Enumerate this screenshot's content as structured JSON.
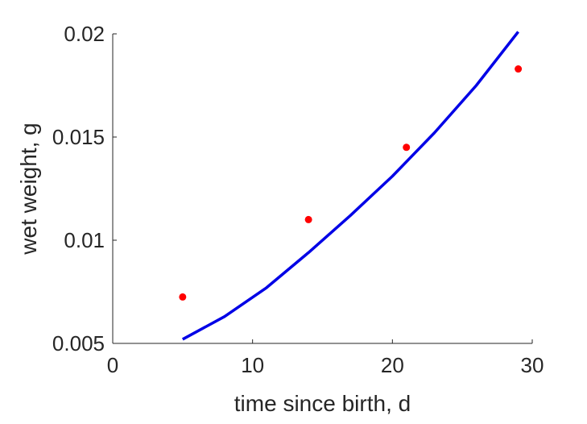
{
  "chart_data": {
    "type": "line",
    "title": "",
    "xlabel": "time since birth, d",
    "ylabel": "wet weight, g",
    "xlim": [
      0,
      30
    ],
    "ylim": [
      0.005,
      0.02
    ],
    "xticks": [
      0,
      10,
      20,
      30
    ],
    "xtick_labels": [
      "0",
      "10",
      "20",
      "30"
    ],
    "yticks": [
      0.005,
      0.01,
      0.015,
      0.02
    ],
    "ytick_labels": [
      "0.005",
      "0.01",
      "0.015",
      "0.02"
    ],
    "grid": false,
    "series": [
      {
        "kind": "scatter",
        "color": "#ff0000",
        "x": [
          5,
          14,
          21,
          29
        ],
        "y": [
          0.00725,
          0.011,
          0.0145,
          0.0183
        ]
      },
      {
        "kind": "line",
        "color": "#0000e6",
        "x": [
          5,
          8,
          11,
          14,
          17,
          20,
          23,
          26,
          29
        ],
        "y": [
          0.0052,
          0.0063,
          0.0077,
          0.0094,
          0.0112,
          0.0131,
          0.0152,
          0.0175,
          0.0201
        ]
      }
    ]
  }
}
